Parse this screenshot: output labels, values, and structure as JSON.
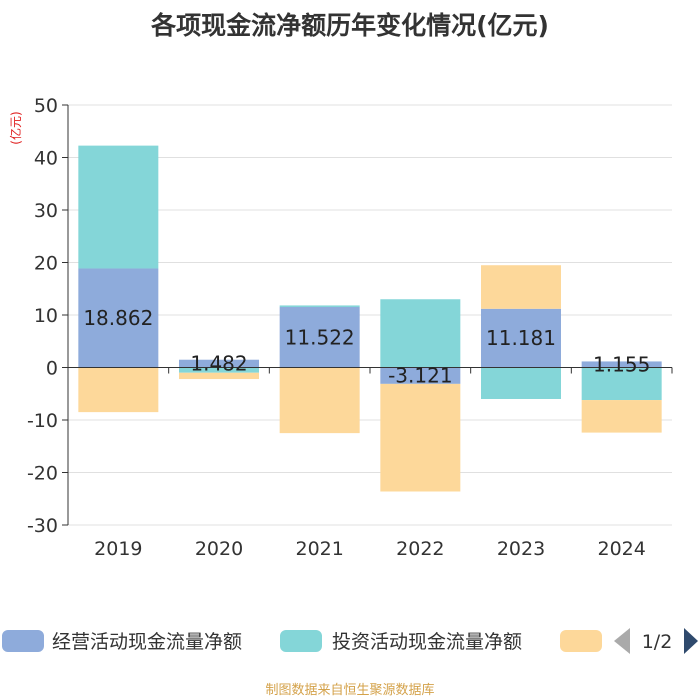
{
  "chart_data": {
    "type": "bar",
    "stacked": true,
    "title": "各项现金流净额历年变化情况(亿元)",
    "ylabel": "(亿元)",
    "xlabel": "",
    "categories": [
      "2019",
      "2020",
      "2021",
      "2022",
      "2023",
      "2024"
    ],
    "ylim": [
      -30,
      50
    ],
    "yticks": [
      50,
      40,
      30,
      20,
      10,
      0,
      -10,
      -20,
      -30
    ],
    "ytick_labels": [
      "50",
      "40",
      "30",
      "20",
      "10",
      "0",
      "-10",
      "-20",
      "-30"
    ],
    "grid": true,
    "series": [
      {
        "name": "经营活动现金流量净额",
        "color": "#8eabdb",
        "values": [
          18.862,
          1.482,
          11.522,
          -3.121,
          11.181,
          1.155
        ],
        "labels": [
          "18.862",
          "1.482",
          "11.522",
          "-3.121",
          "11.181",
          "1.155"
        ]
      },
      {
        "name": "投资活动现金流量净额",
        "color": "#84d6d8",
        "values": [
          23.4,
          -1.0,
          0.3,
          13.0,
          -6.0,
          -6.2
        ]
      },
      {
        "name": "",
        "color": "#fdd89a",
        "values": [
          -8.5,
          -1.2,
          -12.5,
          -20.5,
          8.3,
          -6.2
        ]
      }
    ],
    "legend": {
      "position": "bottom",
      "page": "1/2"
    }
  },
  "footer": {
    "source": "制图数据来自恒生聚源数据库"
  }
}
